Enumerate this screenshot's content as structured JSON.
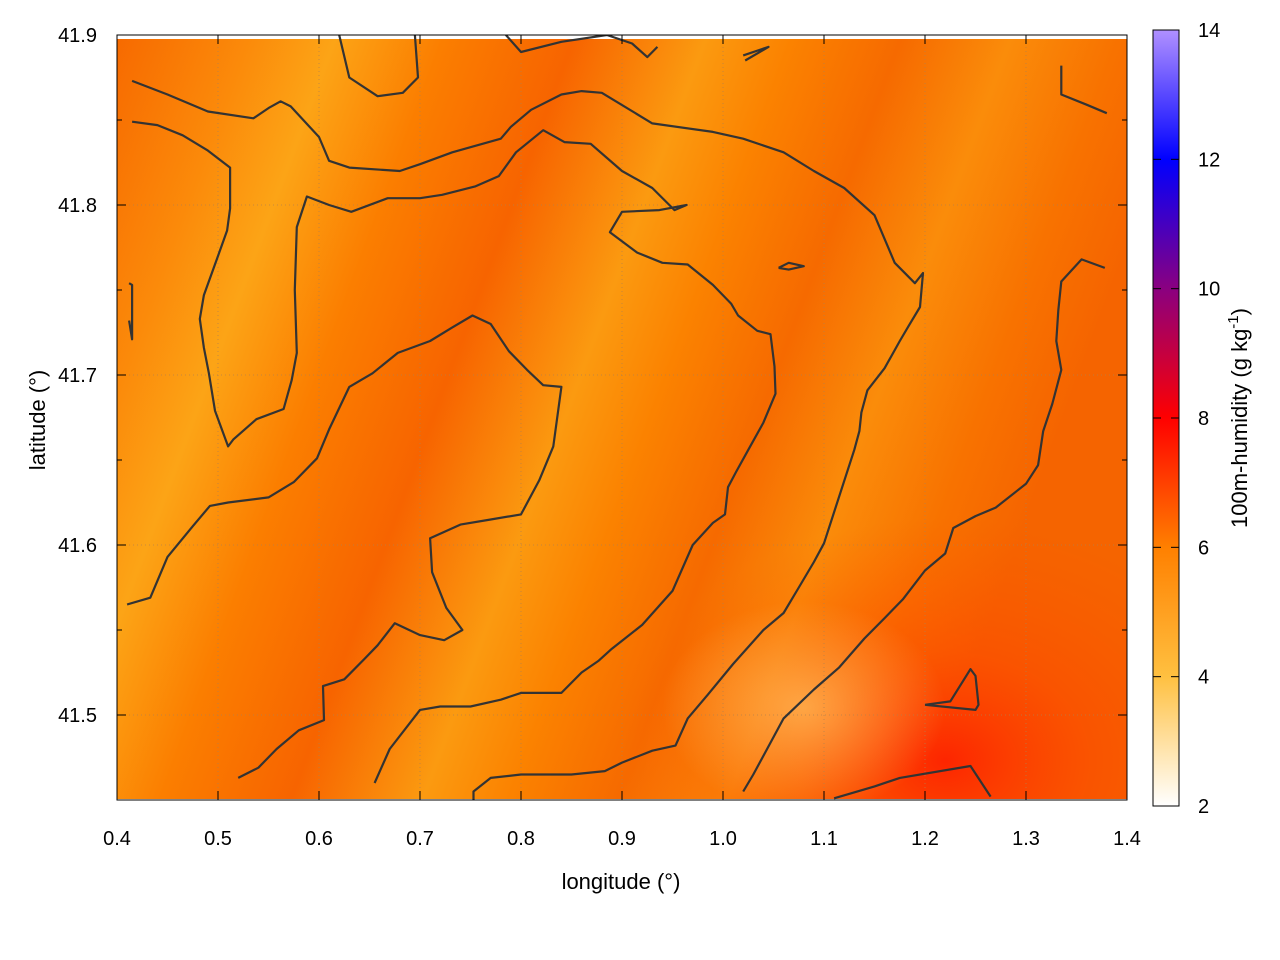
{
  "chart_data": {
    "type": "heatmap",
    "title": "",
    "xlabel": "longitude (°)",
    "ylabel": "latitude (°)",
    "xlim": [
      0.4,
      1.4
    ],
    "ylim": [
      41.45,
      41.9
    ],
    "x_ticks": [
      "0.4",
      "0.5",
      "0.6",
      "0.7",
      "0.8",
      "0.9",
      "1.0",
      "1.1",
      "1.2",
      "1.3",
      "1.4"
    ],
    "y_ticks": [
      "41.5",
      "41.6",
      "41.7",
      "41.8",
      "41.9"
    ],
    "grid": true,
    "colorbar": {
      "label_main": "100m-humidity (g kg",
      "label_sup": "-1",
      "label_end": ")",
      "range": [
        2,
        14
      ],
      "ticks": [
        "2",
        "4",
        "6",
        "8",
        "10",
        "12",
        "14"
      ],
      "stops": [
        {
          "value": 2,
          "color": "#ffffff"
        },
        {
          "value": 4,
          "color": "#ffc040"
        },
        {
          "value": 6,
          "color": "#ff8000"
        },
        {
          "value": 8,
          "color": "#ff0000"
        },
        {
          "value": 10,
          "color": "#8a0080"
        },
        {
          "value": 12,
          "color": "#0000ff"
        },
        {
          "value": 14,
          "color": "#b090ff"
        }
      ]
    },
    "field_description": "humidity mostly 4.5-6.5 g/kg across the domain, higher (7-8) in the south-east corner",
    "contours": [
      [
        [
          0.415,
          41.873
        ],
        [
          0.45,
          41.865
        ],
        [
          0.49,
          41.855
        ],
        [
          0.535,
          41.851
        ],
        [
          0.55,
          41.857
        ],
        [
          0.562,
          41.861
        ],
        [
          0.572,
          41.858
        ],
        [
          0.6,
          41.84
        ],
        [
          0.61,
          41.826
        ],
        [
          0.63,
          41.822
        ],
        [
          0.68,
          41.82
        ],
        [
          0.7,
          41.824
        ],
        [
          0.732,
          41.831
        ],
        [
          0.75,
          41.834
        ],
        [
          0.78,
          41.839
        ],
        [
          0.79,
          41.846
        ],
        [
          0.81,
          41.856
        ],
        [
          0.84,
          41.865
        ],
        [
          0.86,
          41.867
        ],
        [
          0.88,
          41.866
        ],
        [
          0.93,
          41.848
        ],
        [
          0.99,
          41.843
        ],
        [
          1.02,
          41.839
        ],
        [
          1.06,
          41.831
        ],
        [
          1.09,
          41.82
        ],
        [
          1.12,
          41.81
        ],
        [
          1.15,
          41.794
        ],
        [
          1.17,
          41.766
        ],
        [
          1.19,
          41.754
        ],
        [
          1.198,
          41.76
        ],
        [
          1.195,
          41.74
        ],
        [
          1.184,
          41.729
        ],
        [
          1.175,
          41.72
        ],
        [
          1.16,
          41.704
        ],
        [
          1.143,
          41.691
        ],
        [
          1.137,
          41.678
        ],
        [
          1.135,
          41.667
        ],
        [
          1.13,
          41.656
        ],
        [
          1.1,
          41.601
        ],
        [
          1.09,
          41.59
        ],
        [
          1.075,
          41.575
        ],
        [
          1.06,
          41.56
        ],
        [
          1.04,
          41.55
        ],
        [
          1.01,
          41.53
        ],
        [
          0.985,
          41.512
        ],
        [
          0.965,
          41.498
        ],
        [
          0.953,
          41.482
        ],
        [
          0.93,
          41.479
        ],
        [
          0.9,
          41.472
        ],
        [
          0.883,
          41.467
        ],
        [
          0.85,
          41.465
        ],
        [
          0.8,
          41.465
        ],
        [
          0.77,
          41.463
        ],
        [
          0.753,
          41.455
        ],
        [
          0.753,
          41.44
        ]
      ],
      [
        [
          0.415,
          41.849
        ],
        [
          0.44,
          41.847
        ],
        [
          0.465,
          41.841
        ],
        [
          0.49,
          41.832
        ],
        [
          0.512,
          41.822
        ],
        [
          0.512,
          41.808
        ],
        [
          0.512,
          41.798
        ],
        [
          0.509,
          41.785
        ],
        [
          0.5,
          41.77
        ],
        [
          0.486,
          41.747
        ],
        [
          0.482,
          41.733
        ],
        [
          0.486,
          41.716
        ],
        [
          0.491,
          41.701
        ],
        [
          0.497,
          41.679
        ],
        [
          0.51,
          41.658
        ],
        [
          0.515,
          41.662
        ],
        [
          0.538,
          41.674
        ],
        [
          0.565,
          41.68
        ],
        [
          0.573,
          41.697
        ],
        [
          0.578,
          41.713
        ],
        [
          0.576,
          41.75
        ],
        [
          0.578,
          41.787
        ],
        [
          0.588,
          41.805
        ],
        [
          0.61,
          41.8
        ],
        [
          0.632,
          41.796
        ],
        [
          0.668,
          41.804
        ],
        [
          0.7,
          41.804
        ],
        [
          0.722,
          41.806
        ],
        [
          0.755,
          41.811
        ],
        [
          0.778,
          41.817
        ],
        [
          0.795,
          41.831
        ],
        [
          0.822,
          41.844
        ],
        [
          0.843,
          41.837
        ],
        [
          0.869,
          41.836
        ],
        [
          0.9,
          41.82
        ],
        [
          0.93,
          41.81
        ],
        [
          0.952,
          41.797
        ],
        [
          0.964,
          41.8
        ],
        [
          0.937,
          41.797
        ],
        [
          0.9,
          41.796
        ],
        [
          0.888,
          41.784
        ],
        [
          0.915,
          41.772
        ],
        [
          0.94,
          41.766
        ],
        [
          0.965,
          41.765
        ],
        [
          0.99,
          41.753
        ],
        [
          1.008,
          41.742
        ],
        [
          1.015,
          41.735
        ],
        [
          1.034,
          41.726
        ],
        [
          1.047,
          41.724
        ],
        [
          1.051,
          41.705
        ],
        [
          1.052,
          41.689
        ],
        [
          1.04,
          41.672
        ],
        [
          1.025,
          41.656
        ],
        [
          1.013,
          41.643
        ],
        [
          1.005,
          41.634
        ],
        [
          1.002,
          41.618
        ],
        [
          0.99,
          41.613
        ],
        [
          0.97,
          41.6
        ],
        [
          0.95,
          41.573
        ],
        [
          0.92,
          41.553
        ],
        [
          0.89,
          41.539
        ],
        [
          0.877,
          41.532
        ],
        [
          0.86,
          41.525
        ],
        [
          0.84,
          41.513
        ],
        [
          0.8,
          41.513
        ],
        [
          0.78,
          41.509
        ],
        [
          0.75,
          41.505
        ],
        [
          0.72,
          41.505
        ],
        [
          0.7,
          41.503
        ],
        [
          0.67,
          41.48
        ],
        [
          0.655,
          41.46
        ]
      ],
      [
        [
          0.41,
          41.565
        ],
        [
          0.433,
          41.569
        ],
        [
          0.45,
          41.593
        ],
        [
          0.475,
          41.611
        ],
        [
          0.492,
          41.623
        ],
        [
          0.51,
          41.625
        ],
        [
          0.55,
          41.628
        ],
        [
          0.575,
          41.637
        ],
        [
          0.598,
          41.651
        ],
        [
          0.61,
          41.668
        ],
        [
          0.63,
          41.693
        ],
        [
          0.653,
          41.701
        ],
        [
          0.678,
          41.713
        ],
        [
          0.71,
          41.72
        ],
        [
          0.732,
          41.728
        ],
        [
          0.752,
          41.735
        ],
        [
          0.77,
          41.73
        ],
        [
          0.788,
          41.714
        ],
        [
          0.806,
          41.703
        ],
        [
          0.822,
          41.694
        ],
        [
          0.84,
          41.693
        ],
        [
          0.832,
          41.658
        ],
        [
          0.818,
          41.638
        ],
        [
          0.8,
          41.618
        ],
        [
          0.77,
          41.615
        ],
        [
          0.74,
          41.612
        ],
        [
          0.71,
          41.604
        ],
        [
          0.712,
          41.584
        ],
        [
          0.726,
          41.563
        ],
        [
          0.742,
          41.55
        ],
        [
          0.724,
          41.544
        ],
        [
          0.7,
          41.547
        ],
        [
          0.675,
          41.554
        ],
        [
          0.658,
          41.541
        ],
        [
          0.645,
          41.533
        ],
        [
          0.625,
          41.521
        ],
        [
          0.604,
          41.517
        ],
        [
          0.605,
          41.497
        ],
        [
          0.58,
          41.491
        ],
        [
          0.558,
          41.48
        ],
        [
          0.54,
          41.469
        ],
        [
          0.52,
          41.463
        ]
      ],
      [
        [
          0.412,
          41.732
        ],
        [
          0.415,
          41.721
        ],
        [
          0.415,
          41.753
        ],
        [
          0.412,
          41.754
        ]
      ],
      [
        [
          0.62,
          41.9
        ],
        [
          0.63,
          41.875
        ],
        [
          0.658,
          41.864
        ],
        [
          0.683,
          41.866
        ],
        [
          0.698,
          41.875
        ],
        [
          0.695,
          41.9
        ]
      ],
      [
        [
          0.785,
          41.9
        ],
        [
          0.8,
          41.89
        ],
        [
          0.84,
          41.896
        ],
        [
          0.885,
          41.9
        ],
        [
          0.91,
          41.895
        ],
        [
          0.925,
          41.887
        ],
        [
          0.935,
          41.893
        ]
      ],
      [
        [
          1.022,
          41.885
        ],
        [
          1.045,
          41.893
        ],
        [
          1.02,
          41.888
        ]
      ],
      [
        [
          1.055,
          41.763
        ],
        [
          1.065,
          41.766
        ],
        [
          1.08,
          41.764
        ],
        [
          1.065,
          41.762
        ],
        [
          1.055,
          41.763
        ]
      ],
      [
        [
          1.335,
          41.882
        ],
        [
          1.335,
          41.865
        ],
        [
          1.36,
          41.859
        ],
        [
          1.38,
          41.854
        ]
      ],
      [
        [
          1.02,
          41.455
        ],
        [
          1.03,
          41.465
        ],
        [
          1.06,
          41.498
        ],
        [
          1.09,
          41.515
        ],
        [
          1.115,
          41.528
        ],
        [
          1.14,
          41.545
        ],
        [
          1.16,
          41.557
        ],
        [
          1.178,
          41.568
        ],
        [
          1.2,
          41.585
        ],
        [
          1.22,
          41.595
        ],
        [
          1.228,
          41.61
        ],
        [
          1.25,
          41.617
        ],
        [
          1.27,
          41.622
        ],
        [
          1.3,
          41.636
        ],
        [
          1.312,
          41.647
        ],
        [
          1.317,
          41.667
        ],
        [
          1.326,
          41.683
        ],
        [
          1.335,
          41.703
        ],
        [
          1.33,
          41.72
        ],
        [
          1.332,
          41.738
        ],
        [
          1.335,
          41.755
        ],
        [
          1.355,
          41.768
        ],
        [
          1.378,
          41.763
        ]
      ],
      [
        [
          1.2,
          41.506
        ],
        [
          1.225,
          41.508
        ],
        [
          1.245,
          41.527
        ],
        [
          1.25,
          41.523
        ],
        [
          1.253,
          41.506
        ],
        [
          1.25,
          41.503
        ],
        [
          1.2,
          41.506
        ]
      ],
      [
        [
          1.11,
          41.451
        ],
        [
          1.15,
          41.458
        ],
        [
          1.175,
          41.463
        ],
        [
          1.245,
          41.47
        ],
        [
          1.265,
          41.452
        ]
      ]
    ]
  }
}
